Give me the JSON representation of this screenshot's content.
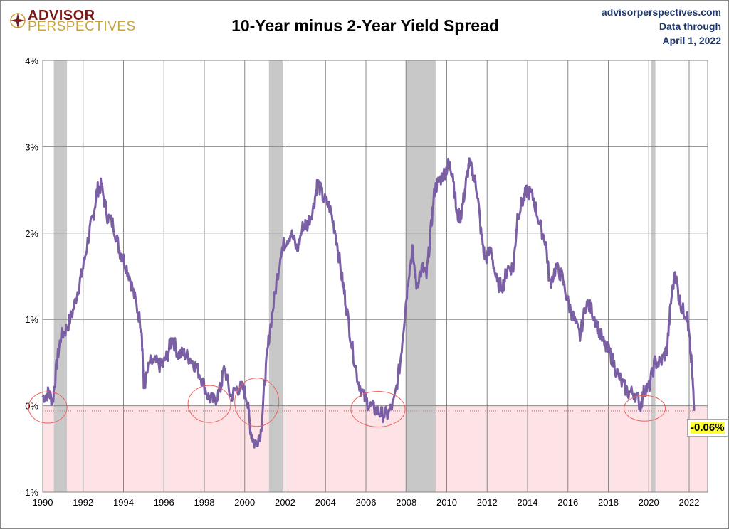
{
  "header": {
    "logo_line1": "ADVISOR",
    "logo_line2": "PERSPECTIVES",
    "source": "advisorperspectives.com",
    "data_through": "Data through",
    "date": "April 1, 2022"
  },
  "colors": {
    "line": "#7b5fa5",
    "negative_zone": "#fde3e6",
    "recession": "#c8c8c8",
    "circle": "#f06060"
  },
  "chart_data": {
    "type": "line",
    "title": "10-Year minus 2-Year Yield Spread",
    "xlabel": "",
    "ylabel": "",
    "xlim": [
      1990,
      2023
    ],
    "ylim": [
      -1,
      4
    ],
    "yticks": [
      -1,
      0,
      1,
      2,
      3,
      4
    ],
    "ytick_labels": [
      "-1%",
      "0%",
      "1%",
      "2%",
      "3%",
      "4%"
    ],
    "xticks": [
      1990,
      1992,
      1994,
      1996,
      1998,
      2000,
      2002,
      2004,
      2006,
      2008,
      2010,
      2012,
      2014,
      2016,
      2018,
      2020,
      2022
    ],
    "xtick_labels": [
      "1990",
      "1992",
      "1994",
      "1996",
      "1998",
      "2000",
      "2002",
      "2004",
      "2006",
      "2008",
      "2010",
      "2012",
      "2014",
      "2016",
      "2018",
      "2020",
      "2022"
    ],
    "grid": true,
    "recessions": [
      [
        1990.55,
        1991.2
      ],
      [
        2001.2,
        2001.88
      ],
      [
        2007.95,
        2009.45
      ],
      [
        2020.12,
        2020.33
      ]
    ],
    "last_value_label": "-0.06%",
    "annotations": "circled inversion episodes near 1990, 1998, 2000, 2006-2007, 2019",
    "series": [
      {
        "name": "10Y-2Y spread (%)",
        "x": [
          1990.0,
          1990.3,
          1990.5,
          1990.7,
          1990.9,
          1991.2,
          1991.5,
          1991.8,
          1992.0,
          1992.3,
          1992.5,
          1992.7,
          1992.9,
          1993.2,
          1993.5,
          1993.8,
          1994.0,
          1994.3,
          1994.6,
          1994.9,
          1995.0,
          1995.3,
          1995.6,
          1995.9,
          1996.2,
          1996.4,
          1996.7,
          1997.0,
          1997.3,
          1997.6,
          1997.9,
          1998.2,
          1998.5,
          1998.8,
          1999.0,
          1999.3,
          1999.6,
          1999.9,
          2000.1,
          2000.3,
          2000.5,
          2000.8,
          2001.0,
          2001.2,
          2001.5,
          2001.8,
          2002.0,
          2002.3,
          2002.6,
          2002.9,
          2003.1,
          2003.4,
          2003.6,
          2003.9,
          2004.2,
          2004.5,
          2004.8,
          2005.0,
          2005.3,
          2005.6,
          2005.9,
          2006.2,
          2006.5,
          2006.8,
          2007.1,
          2007.4,
          2007.7,
          2007.9,
          2008.1,
          2008.3,
          2008.5,
          2008.8,
          2009.0,
          2009.2,
          2009.4,
          2009.6,
          2009.9,
          2010.1,
          2010.3,
          2010.5,
          2010.7,
          2010.9,
          2011.1,
          2011.3,
          2011.5,
          2011.7,
          2011.9,
          2012.2,
          2012.5,
          2012.8,
          2013.0,
          2013.3,
          2013.5,
          2013.8,
          2014.0,
          2014.3,
          2014.6,
          2014.9,
          2015.1,
          2015.4,
          2015.7,
          2016.0,
          2016.3,
          2016.6,
          2016.9,
          2017.2,
          2017.5,
          2017.8,
          2018.1,
          2018.4,
          2018.7,
          2019.0,
          2019.3,
          2019.6,
          2019.8,
          2020.0,
          2020.3,
          2020.6,
          2020.9,
          2021.1,
          2021.3,
          2021.5,
          2021.7,
          2021.9,
          2022.0,
          2022.15,
          2022.25
        ],
        "values": [
          0.1,
          0.15,
          0.05,
          0.5,
          0.8,
          0.9,
          1.1,
          1.4,
          1.6,
          2.0,
          2.2,
          2.5,
          2.55,
          2.2,
          2.1,
          1.8,
          1.7,
          1.5,
          1.2,
          0.9,
          0.2,
          0.5,
          0.5,
          0.45,
          0.6,
          0.8,
          0.6,
          0.6,
          0.55,
          0.45,
          0.3,
          0.1,
          0.05,
          0.2,
          0.45,
          0.1,
          0.2,
          0.2,
          0.1,
          -0.3,
          -0.45,
          -0.3,
          0.3,
          0.8,
          1.3,
          1.8,
          1.9,
          2.0,
          1.8,
          2.1,
          2.1,
          2.3,
          2.6,
          2.4,
          2.3,
          2.0,
          1.5,
          1.2,
          0.7,
          0.3,
          0.1,
          0.0,
          -0.05,
          -0.1,
          -0.1,
          0.05,
          0.5,
          1.0,
          1.5,
          1.8,
          1.4,
          1.6,
          1.5,
          2.0,
          2.5,
          2.6,
          2.7,
          2.8,
          2.7,
          2.2,
          2.2,
          2.5,
          2.8,
          2.7,
          2.5,
          2.0,
          1.7,
          1.8,
          1.4,
          1.4,
          1.6,
          1.6,
          2.2,
          2.4,
          2.5,
          2.4,
          2.1,
          1.9,
          1.4,
          1.6,
          1.5,
          1.2,
          1.0,
          0.8,
          1.2,
          1.1,
          0.9,
          0.7,
          0.6,
          0.4,
          0.25,
          0.15,
          0.15,
          0.0,
          0.2,
          0.2,
          0.5,
          0.5,
          0.65,
          1.2,
          1.55,
          1.25,
          1.1,
          1.05,
          0.8,
          0.4,
          -0.06
        ]
      }
    ]
  }
}
